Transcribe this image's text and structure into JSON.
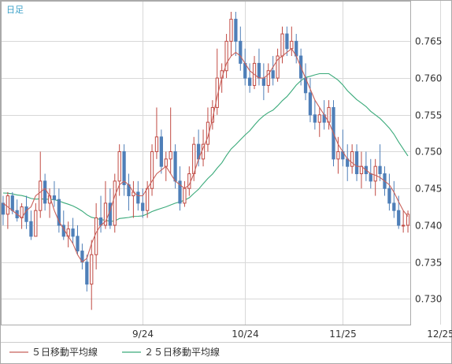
{
  "header": {
    "period_label": "日足"
  },
  "legend": [
    {
      "label": "５日移動平均線",
      "color": "#c8605a"
    },
    {
      "label": "２５日移動平均線",
      "color": "#3aaa7a"
    }
  ],
  "colors": {
    "up": "#c04a43",
    "down": "#4f7fb8",
    "grid": "#d8d8d8",
    "frame": "#aaaaaa",
    "period_label": "#3aa0c8"
  },
  "chart_data": {
    "type": "candlestick",
    "x_tick_labels": [
      "9/24",
      "10/24",
      "11/25",
      "12/25"
    ],
    "x_tick_indices": [
      30,
      52,
      73,
      94
    ],
    "y_ticks": [
      0.73,
      0.735,
      0.74,
      0.745,
      0.75,
      0.755,
      0.76,
      0.765
    ],
    "ylim": [
      0.7265,
      0.7705
    ],
    "grid": true,
    "legend_position": "bottom",
    "candles": [
      [
        0.743,
        0.744,
        0.74,
        0.7415
      ],
      [
        0.7415,
        0.7445,
        0.7395,
        0.744
      ],
      [
        0.744,
        0.7445,
        0.7415,
        0.742
      ],
      [
        0.742,
        0.7435,
        0.7405,
        0.741
      ],
      [
        0.741,
        0.743,
        0.7395,
        0.7425
      ],
      [
        0.7425,
        0.744,
        0.7395,
        0.7405
      ],
      [
        0.7405,
        0.742,
        0.738,
        0.7385
      ],
      [
        0.7385,
        0.743,
        0.7385,
        0.742
      ],
      [
        0.742,
        0.75,
        0.741,
        0.746
      ],
      [
        0.746,
        0.747,
        0.742,
        0.743
      ],
      [
        0.743,
        0.745,
        0.741,
        0.744
      ],
      [
        0.744,
        0.746,
        0.7425,
        0.7435
      ],
      [
        0.7435,
        0.745,
        0.739,
        0.74
      ],
      [
        0.74,
        0.742,
        0.738,
        0.7385
      ],
      [
        0.7385,
        0.7405,
        0.737,
        0.7395
      ],
      [
        0.7395,
        0.741,
        0.7375,
        0.7385
      ],
      [
        0.7385,
        0.74,
        0.736,
        0.7365
      ],
      [
        0.7365,
        0.7375,
        0.734,
        0.735
      ],
      [
        0.735,
        0.736,
        0.731,
        0.732
      ],
      [
        0.732,
        0.738,
        0.7285,
        0.736
      ],
      [
        0.736,
        0.743,
        0.734,
        0.741
      ],
      [
        0.741,
        0.744,
        0.739,
        0.74
      ],
      [
        0.74,
        0.746,
        0.7395,
        0.743
      ],
      [
        0.743,
        0.745,
        0.7395,
        0.74
      ],
      [
        0.74,
        0.747,
        0.739,
        0.746
      ],
      [
        0.746,
        0.751,
        0.744,
        0.75
      ],
      [
        0.75,
        0.751,
        0.744,
        0.7455
      ],
      [
        0.7455,
        0.747,
        0.742,
        0.744
      ],
      [
        0.744,
        0.746,
        0.741,
        0.7445
      ],
      [
        0.7445,
        0.746,
        0.742,
        0.743
      ],
      [
        0.743,
        0.745,
        0.741,
        0.742
      ],
      [
        0.742,
        0.746,
        0.741,
        0.745
      ],
      [
        0.745,
        0.751,
        0.744,
        0.75
      ],
      [
        0.75,
        0.756,
        0.749,
        0.752
      ],
      [
        0.752,
        0.753,
        0.747,
        0.748
      ],
      [
        0.748,
        0.75,
        0.746,
        0.749
      ],
      [
        0.749,
        0.756,
        0.747,
        0.75
      ],
      [
        0.75,
        0.751,
        0.745,
        0.746
      ],
      [
        0.746,
        0.748,
        0.742,
        0.743
      ],
      [
        0.743,
        0.746,
        0.7425,
        0.745
      ],
      [
        0.745,
        0.748,
        0.744,
        0.747
      ],
      [
        0.747,
        0.752,
        0.746,
        0.751
      ],
      [
        0.751,
        0.753,
        0.748,
        0.749
      ],
      [
        0.749,
        0.753,
        0.748,
        0.751
      ],
      [
        0.751,
        0.756,
        0.75,
        0.754
      ],
      [
        0.754,
        0.757,
        0.753,
        0.756
      ],
      [
        0.756,
        0.764,
        0.755,
        0.76
      ],
      [
        0.76,
        0.762,
        0.758,
        0.761
      ],
      [
        0.761,
        0.766,
        0.76,
        0.765
      ],
      [
        0.765,
        0.769,
        0.763,
        0.768
      ],
      [
        0.768,
        0.769,
        0.763,
        0.765
      ],
      [
        0.765,
        0.767,
        0.761,
        0.762
      ],
      [
        0.762,
        0.764,
        0.759,
        0.76
      ],
      [
        0.76,
        0.762,
        0.758,
        0.759
      ],
      [
        0.759,
        0.763,
        0.7585,
        0.762
      ],
      [
        0.762,
        0.764,
        0.759,
        0.76
      ],
      [
        0.76,
        0.762,
        0.757,
        0.759
      ],
      [
        0.759,
        0.762,
        0.758,
        0.761
      ],
      [
        0.761,
        0.763,
        0.759,
        0.76
      ],
      [
        0.76,
        0.764,
        0.7595,
        0.763
      ],
      [
        0.763,
        0.767,
        0.762,
        0.766
      ],
      [
        0.766,
        0.767,
        0.763,
        0.764
      ],
      [
        0.764,
        0.767,
        0.763,
        0.765
      ],
      [
        0.765,
        0.766,
        0.762,
        0.763
      ],
      [
        0.763,
        0.764,
        0.759,
        0.76
      ],
      [
        0.76,
        0.762,
        0.757,
        0.758
      ],
      [
        0.758,
        0.76,
        0.754,
        0.755
      ],
      [
        0.755,
        0.757,
        0.753,
        0.754
      ],
      [
        0.754,
        0.756,
        0.752,
        0.755
      ],
      [
        0.755,
        0.757,
        0.753,
        0.754
      ],
      [
        0.754,
        0.757,
        0.753,
        0.756
      ],
      [
        0.756,
        0.757,
        0.748,
        0.749
      ],
      [
        0.749,
        0.752,
        0.747,
        0.75
      ],
      [
        0.75,
        0.753,
        0.748,
        0.749
      ],
      [
        0.749,
        0.751,
        0.746,
        0.748
      ],
      [
        0.748,
        0.751,
        0.747,
        0.75
      ],
      [
        0.75,
        0.751,
        0.746,
        0.747
      ],
      [
        0.747,
        0.75,
        0.745,
        0.748
      ],
      [
        0.748,
        0.75,
        0.746,
        0.747
      ],
      [
        0.747,
        0.749,
        0.745,
        0.746
      ],
      [
        0.746,
        0.749,
        0.744,
        0.748
      ],
      [
        0.748,
        0.751,
        0.746,
        0.747
      ],
      [
        0.747,
        0.748,
        0.744,
        0.745
      ],
      [
        0.745,
        0.747,
        0.742,
        0.743
      ],
      [
        0.743,
        0.746,
        0.741,
        0.742
      ],
      [
        0.742,
        0.744,
        0.7395,
        0.74
      ],
      [
        0.74,
        0.742,
        0.739,
        0.74
      ],
      [
        0.74,
        0.742,
        0.739,
        0.7415
      ]
    ],
    "sma5": [
      0.743,
      0.7425,
      0.742,
      0.7415,
      0.741,
      0.742,
      0.7425,
      0.744,
      0.7445,
      0.745,
      0.744,
      0.742,
      0.7405,
      0.7395,
      0.7385,
      0.7375,
      0.736,
      0.735,
      0.7355,
      0.7375,
      0.739,
      0.74,
      0.7405,
      0.742,
      0.744,
      0.7455,
      0.746,
      0.7455,
      0.7445,
      0.744,
      0.744,
      0.745,
      0.746,
      0.747,
      0.7475,
      0.748,
      0.747,
      0.746,
      0.7455,
      0.745,
      0.7455,
      0.747,
      0.749,
      0.7505,
      0.752,
      0.7545,
      0.7575,
      0.76,
      0.762,
      0.763,
      0.7635,
      0.763,
      0.762,
      0.761,
      0.7605,
      0.76,
      0.76,
      0.7605,
      0.7615,
      0.7625,
      0.763,
      0.7635,
      0.764,
      0.763,
      0.7615,
      0.76,
      0.7585,
      0.757,
      0.756,
      0.755,
      0.754,
      0.7525,
      0.751,
      0.75,
      0.749,
      0.7485,
      0.748,
      0.748,
      0.7475,
      0.747,
      0.7468,
      0.7465,
      0.746,
      0.7455,
      0.7445,
      0.7432,
      0.742,
      0.7412
    ]
  }
}
